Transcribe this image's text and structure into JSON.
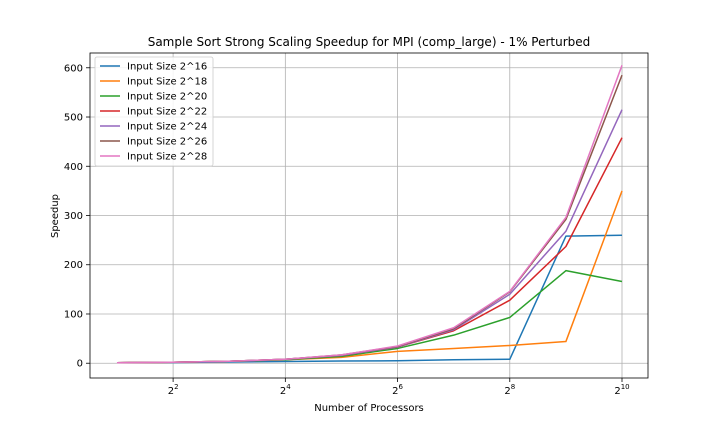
{
  "chart_data": {
    "type": "line",
    "title": "Sample Sort Strong Scaling Speedup for MPI (comp_large) - 1% Perturbed",
    "xlabel": "Number of Processors",
    "ylabel": "Speedup",
    "x_scale": "log2",
    "x": [
      2,
      4,
      8,
      16,
      32,
      64,
      128,
      256,
      512,
      1024
    ],
    "xticks": [
      4,
      16,
      64,
      256,
      1024
    ],
    "xtick_labels": [
      {
        "base": "2",
        "exp": "2"
      },
      {
        "base": "2",
        "exp": "4"
      },
      {
        "base": "2",
        "exp": "6"
      },
      {
        "base": "2",
        "exp": "8"
      },
      {
        "base": "2",
        "exp": "10"
      }
    ],
    "ylim": [
      -30,
      630
    ],
    "yticks": [
      0,
      100,
      200,
      300,
      400,
      500,
      600
    ],
    "grid": true,
    "legend_position": "top-left",
    "series": [
      {
        "name": "Input Size 2^16",
        "color": "#1f77b4",
        "values": [
          1,
          1.5,
          2.5,
          3.5,
          4.5,
          5,
          7,
          8,
          258,
          260
        ]
      },
      {
        "name": "Input Size 2^18",
        "color": "#ff7f0e",
        "values": [
          1,
          2,
          4,
          7,
          12,
          24,
          30,
          36,
          44,
          350
        ]
      },
      {
        "name": "Input Size 2^20",
        "color": "#2ca02c",
        "values": [
          1,
          2,
          4,
          7,
          14,
          30,
          57,
          93,
          188,
          166
        ]
      },
      {
        "name": "Input Size 2^22",
        "color": "#d62728",
        "values": [
          1,
          2,
          4,
          8,
          16,
          33,
          66,
          128,
          237,
          458
        ]
      },
      {
        "name": "Input Size 2^24",
        "color": "#9467bd",
        "values": [
          1,
          2,
          4,
          8,
          16,
          33,
          68,
          140,
          268,
          515
        ]
      },
      {
        "name": "Input Size 2^26",
        "color": "#8c564b",
        "values": [
          1,
          2,
          4,
          8,
          17,
          34,
          70,
          145,
          292,
          585
        ]
      },
      {
        "name": "Input Size 2^28",
        "color": "#e377c2",
        "values": [
          1,
          2,
          4,
          8,
          17,
          35,
          72,
          146,
          296,
          605
        ]
      }
    ]
  }
}
